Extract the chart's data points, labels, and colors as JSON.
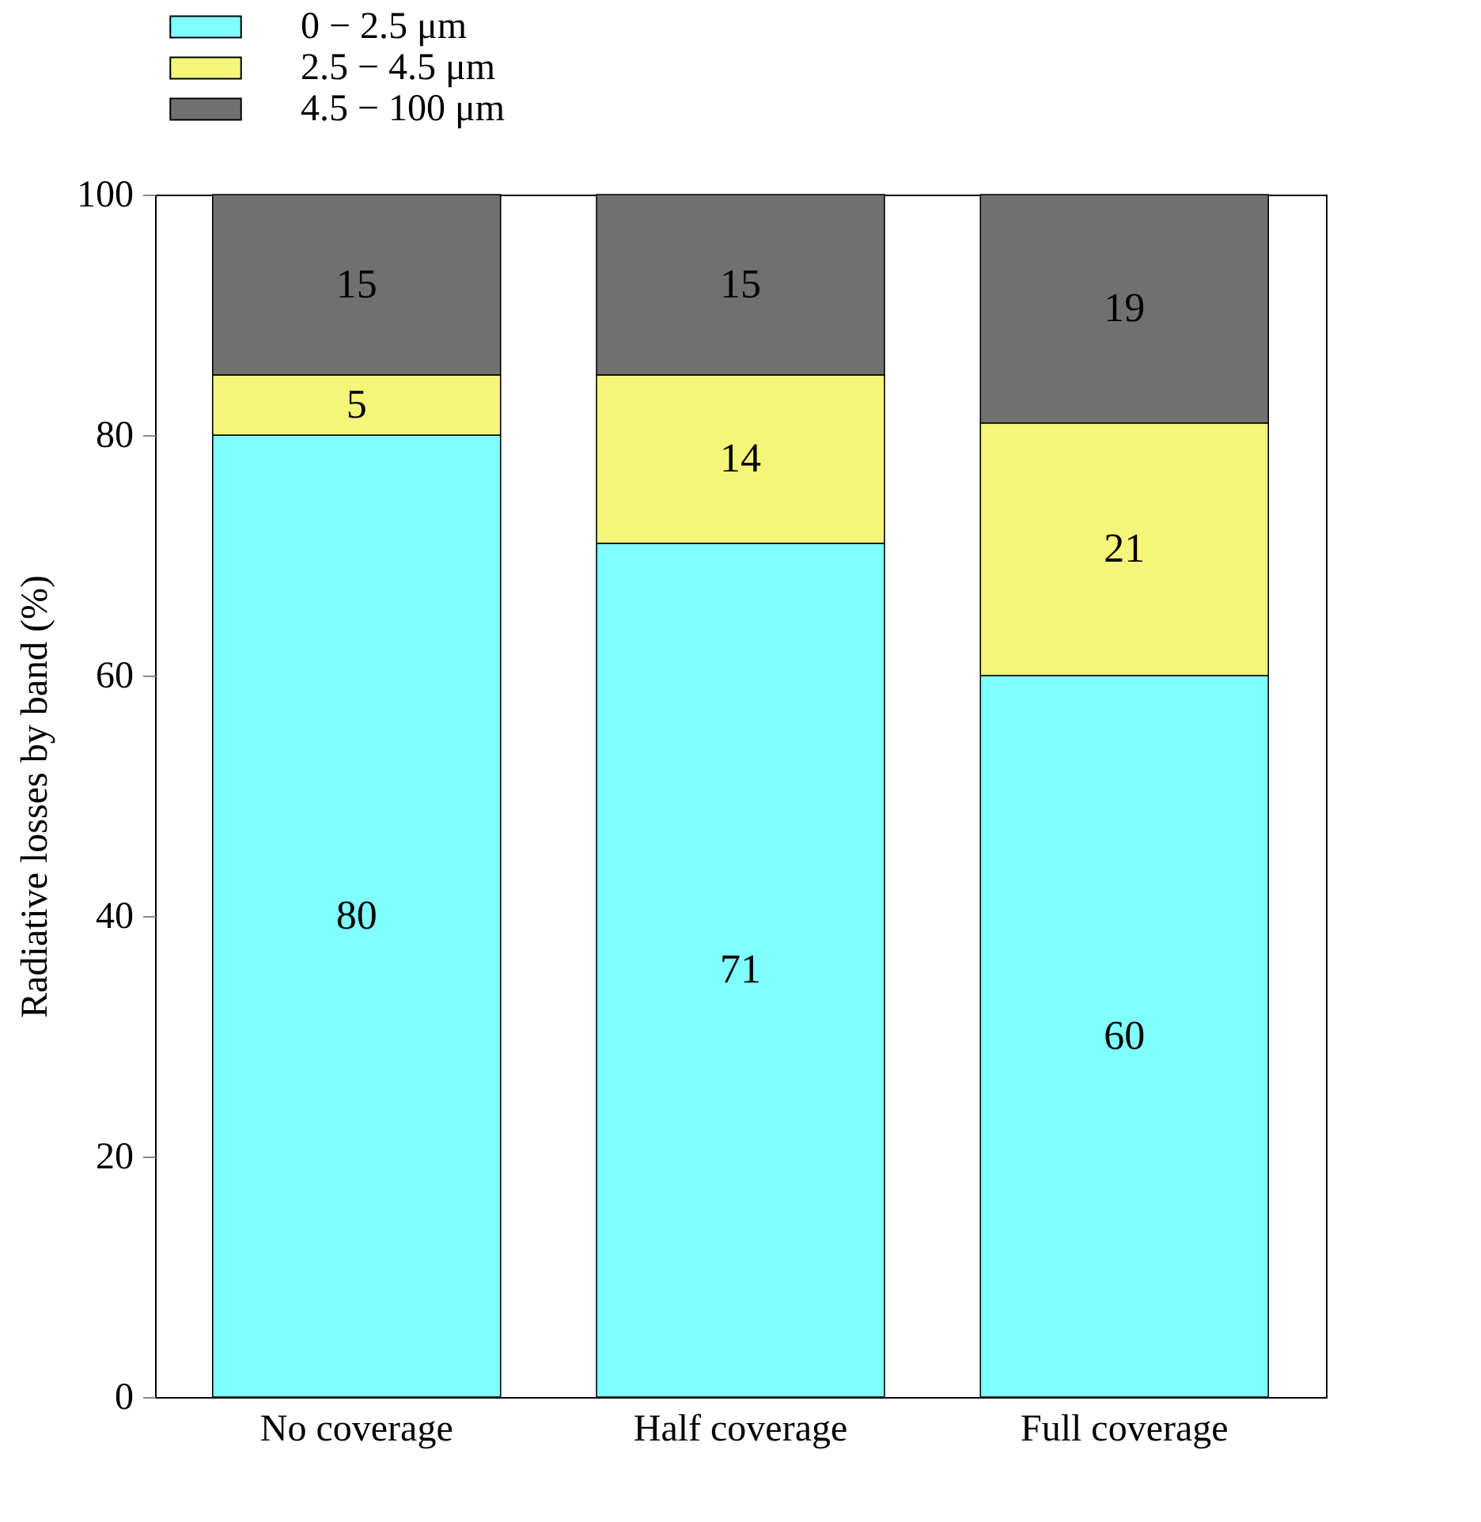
{
  "chart_data": {
    "type": "bar",
    "stacked": true,
    "ylabel": "Radiative losses by band (%)",
    "categories": [
      "No coverage",
      "Half coverage",
      "Full coverage"
    ],
    "series": [
      {
        "name": "0 − 2.5 μm",
        "color": "#80ffff",
        "values": [
          80,
          71,
          60
        ]
      },
      {
        "name": "2.5 − 4.5 μm",
        "color": "#f5f57a",
        "values": [
          5,
          14,
          21
        ]
      },
      {
        "name": "4.5 − 100 μm",
        "color": "#707070",
        "values": [
          15,
          15,
          19
        ]
      }
    ],
    "ylim": [
      0,
      100
    ],
    "yticks": [
      0,
      20,
      40,
      60,
      80,
      100
    ],
    "grid": false,
    "legend": "top left",
    "data_labels": true
  }
}
